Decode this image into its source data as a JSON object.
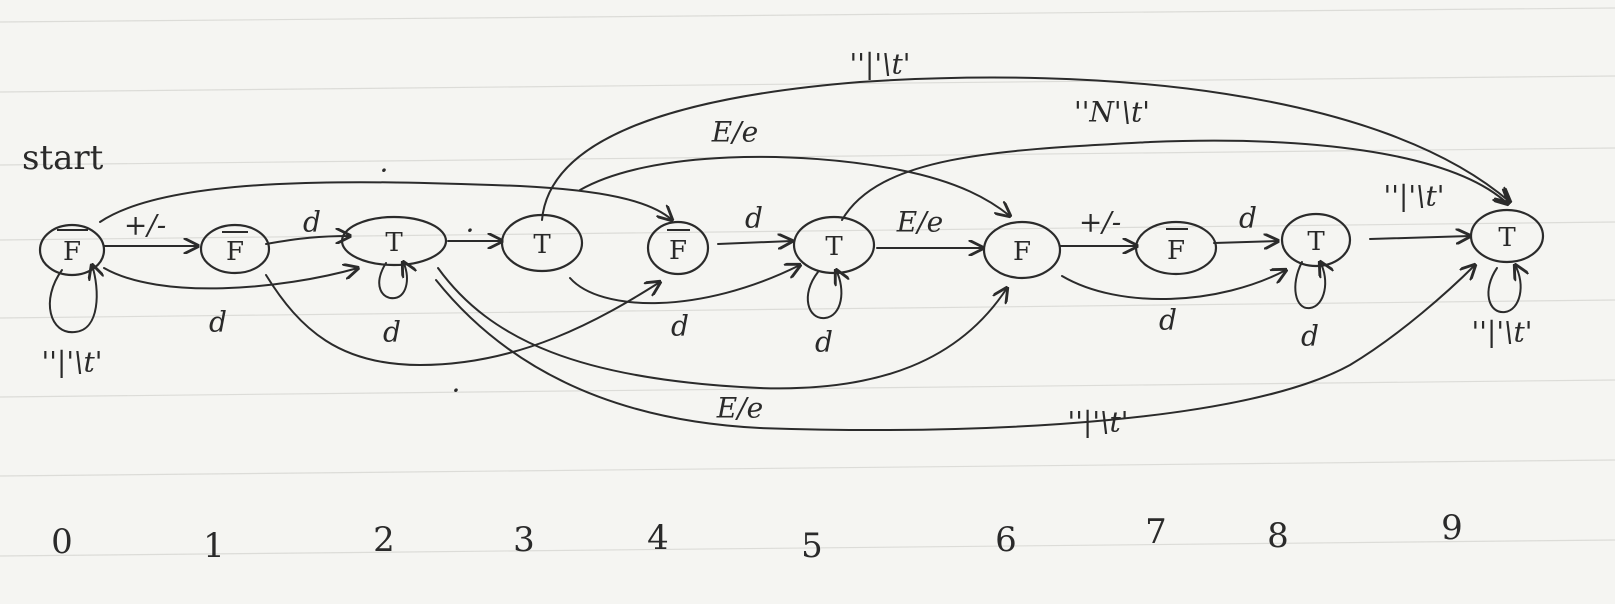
{
  "start_label": "start",
  "states": [
    {
      "id": 0,
      "letter": "F"
    },
    {
      "id": 1,
      "letter": "F"
    },
    {
      "id": 2,
      "letter": "T"
    },
    {
      "id": 3,
      "letter": "T"
    },
    {
      "id": 4,
      "letter": "F"
    },
    {
      "id": 5,
      "letter": "T"
    },
    {
      "id": 6,
      "letter": "F"
    },
    {
      "id": 7,
      "letter": "F"
    },
    {
      "id": 8,
      "letter": "T"
    },
    {
      "id": 9,
      "letter": "T"
    }
  ],
  "index_labels": [
    "0",
    "1",
    "2",
    "3",
    "4",
    "5",
    "6",
    "7",
    "8",
    "9"
  ],
  "edge_labels": {
    "e_0_1": "+/-",
    "e_0_2": "d",
    "e_0_0": "''|'\\t'",
    "e_1_2": "d",
    "e_1_4": ".",
    "e_2_2": "d",
    "e_2_3": ".",
    "e_0_4": ".",
    "e_2_6": "E/e",
    "e_2_9": "''|'\\t'",
    "e_3_5": "d",
    "e_3_6": "E/e",
    "e_3_9": "''|'\\t'",
    "e_4_5": "d",
    "e_5_5": "d",
    "e_5_6": "E/e",
    "e_5_9": "''N'\\t'",
    "e_6_7": "+/-",
    "e_6_8": "d",
    "e_7_8": "d",
    "e_8_8": "d",
    "e_8_9": "''|'\\t'",
    "e_9_9": "''|'\\t'"
  }
}
